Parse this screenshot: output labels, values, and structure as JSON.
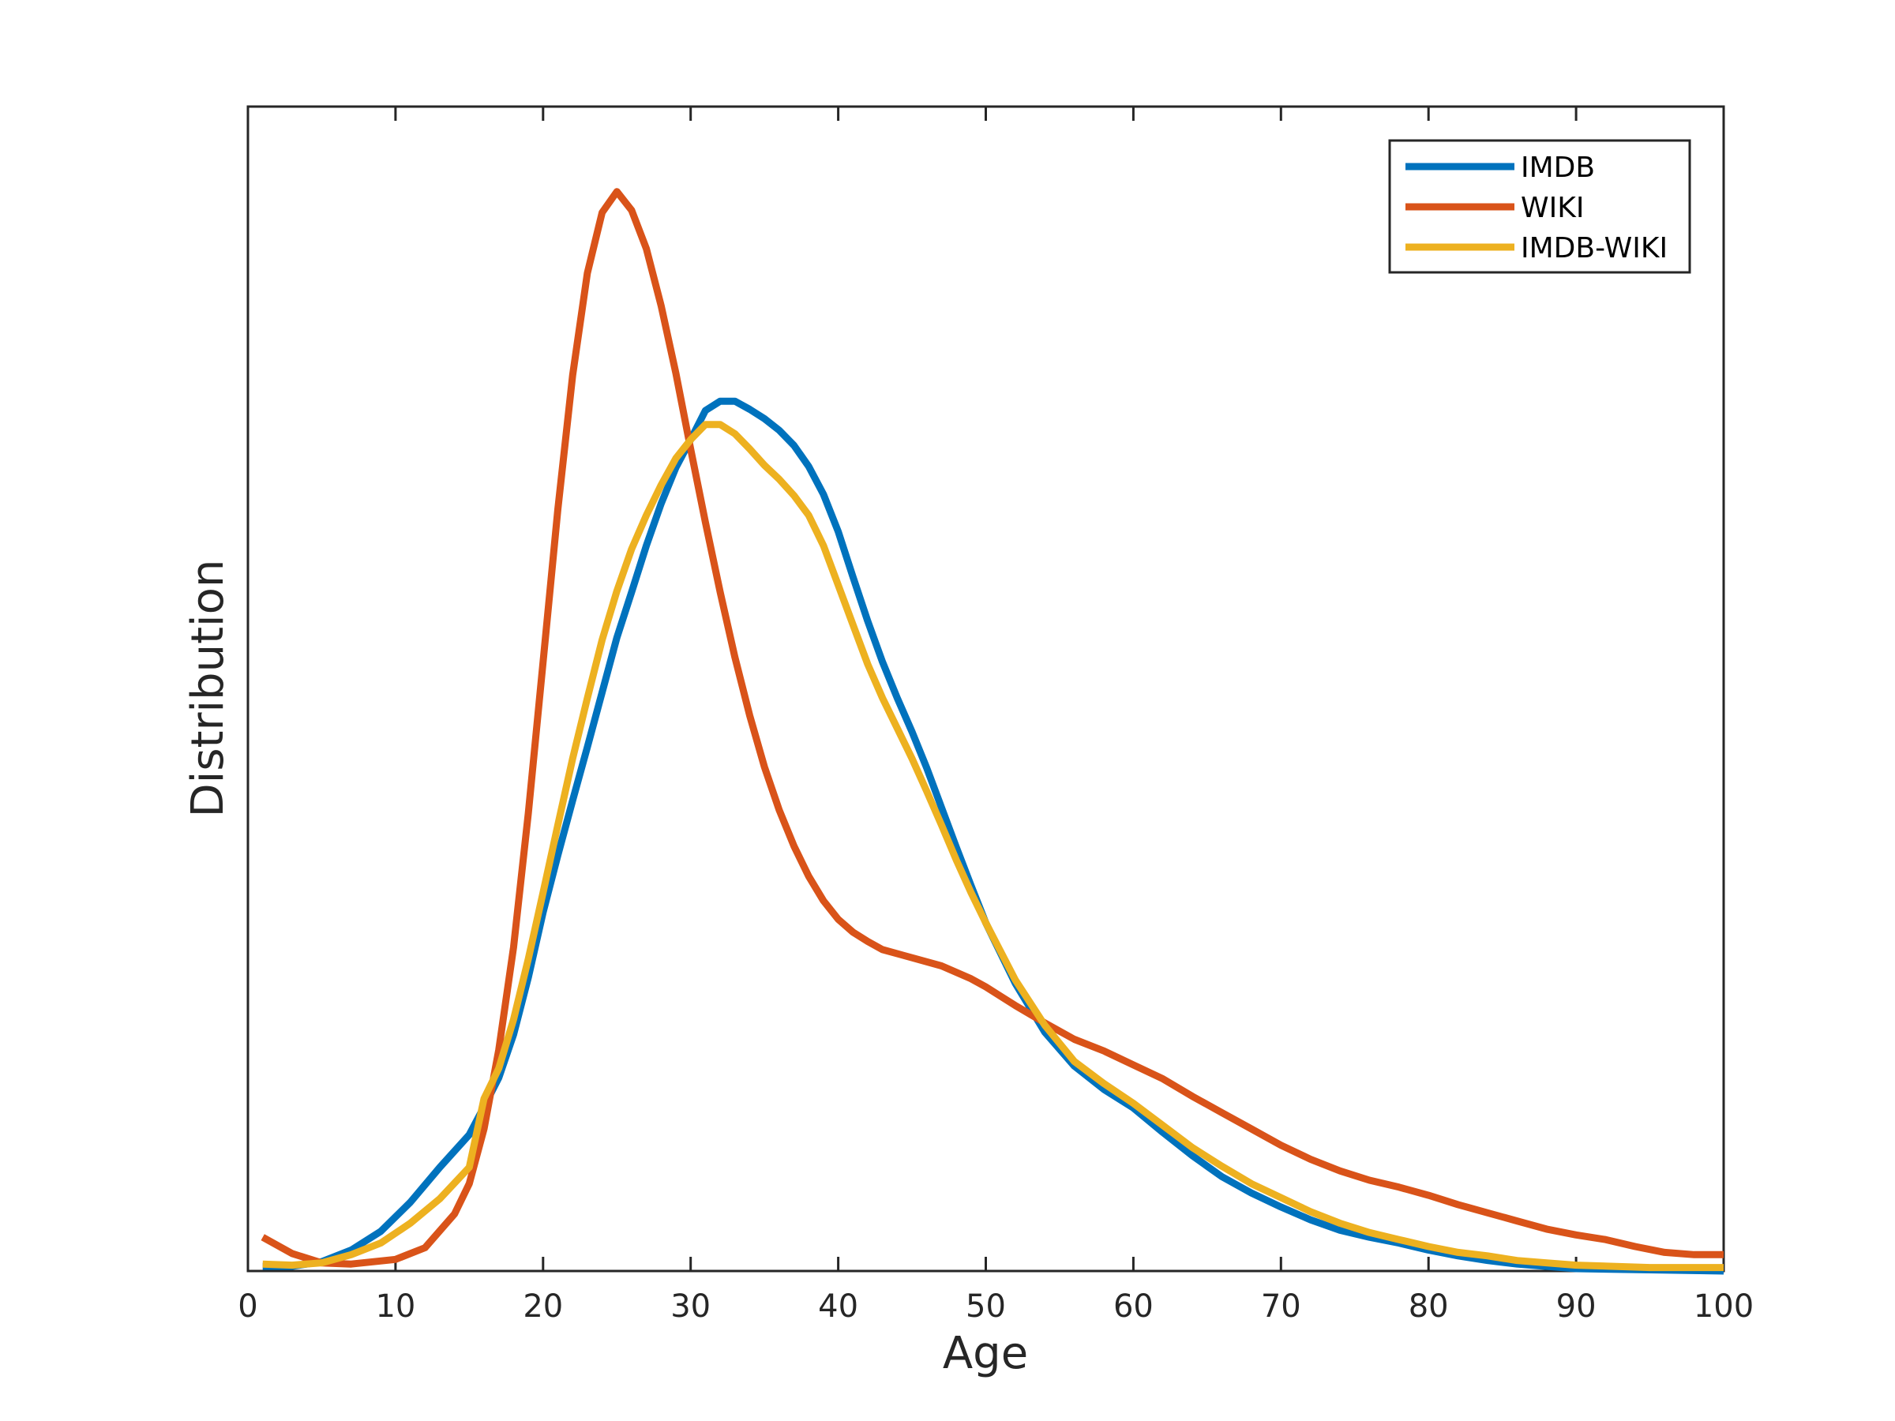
{
  "chart_data": {
    "type": "line",
    "title": "",
    "xlabel": "Age",
    "ylabel": "Distribution",
    "xlim": [
      0,
      100
    ],
    "ylim": [
      0,
      1
    ],
    "xticks": [
      0,
      10,
      20,
      30,
      40,
      50,
      60,
      70,
      80,
      90,
      100
    ],
    "xtick_labels": [
      "0",
      "10",
      "20",
      "30",
      "40",
      "50",
      "60",
      "70",
      "80",
      "90",
      "100"
    ],
    "yticks_shown": false,
    "grid": false,
    "legend_position": "top-right",
    "series": [
      {
        "name": "IMDB",
        "color": "#0072BD",
        "x": [
          1,
          3,
          5,
          7,
          9,
          11,
          13,
          15,
          16,
          17,
          18,
          19,
          20,
          21,
          22,
          23,
          24,
          25,
          26,
          27,
          28,
          29,
          30,
          31,
          32,
          33,
          34,
          35,
          36,
          37,
          38,
          39,
          40,
          41,
          42,
          43,
          44,
          45,
          46,
          47,
          48,
          49,
          50,
          52,
          54,
          56,
          58,
          60,
          62,
          64,
          66,
          68,
          70,
          72,
          74,
          76,
          78,
          80,
          82,
          84,
          86,
          88,
          90,
          95,
          100
        ],
        "y": [
          0.004,
          0.004,
          0.008,
          0.018,
          0.034,
          0.059,
          0.089,
          0.117,
          0.141,
          0.166,
          0.203,
          0.252,
          0.308,
          0.357,
          0.404,
          0.45,
          0.497,
          0.544,
          0.583,
          0.623,
          0.659,
          0.69,
          0.714,
          0.739,
          0.747,
          0.747,
          0.74,
          0.732,
          0.722,
          0.709,
          0.691,
          0.667,
          0.635,
          0.596,
          0.558,
          0.523,
          0.492,
          0.463,
          0.432,
          0.398,
          0.364,
          0.331,
          0.299,
          0.247,
          0.205,
          0.176,
          0.156,
          0.14,
          0.119,
          0.099,
          0.081,
          0.067,
          0.055,
          0.044,
          0.035,
          0.029,
          0.024,
          0.018,
          0.013,
          0.009,
          0.006,
          0.004,
          0.002,
          0.001,
          0.0
        ]
      },
      {
        "name": "WIKI",
        "color": "#D95319",
        "x": [
          1,
          3,
          5,
          7,
          10,
          12,
          14,
          15,
          16,
          17,
          18,
          19,
          20,
          21,
          22,
          23,
          24,
          25,
          26,
          27,
          28,
          29,
          30,
          31,
          32,
          33,
          34,
          35,
          36,
          37,
          38,
          39,
          40,
          41,
          42,
          43,
          45,
          47,
          49,
          50,
          52,
          54,
          56,
          58,
          60,
          62,
          64,
          66,
          68,
          70,
          72,
          74,
          76,
          78,
          80,
          82,
          84,
          86,
          88,
          90,
          92,
          94,
          96,
          98,
          100
        ],
        "y": [
          0.029,
          0.015,
          0.007,
          0.006,
          0.01,
          0.02,
          0.049,
          0.075,
          0.122,
          0.19,
          0.278,
          0.393,
          0.523,
          0.654,
          0.769,
          0.857,
          0.909,
          0.927,
          0.911,
          0.878,
          0.829,
          0.771,
          0.706,
          0.643,
          0.583,
          0.527,
          0.477,
          0.433,
          0.396,
          0.365,
          0.339,
          0.318,
          0.302,
          0.291,
          0.283,
          0.276,
          0.269,
          0.262,
          0.251,
          0.244,
          0.228,
          0.213,
          0.199,
          0.189,
          0.177,
          0.165,
          0.15,
          0.136,
          0.122,
          0.108,
          0.096,
          0.086,
          0.078,
          0.072,
          0.065,
          0.057,
          0.05,
          0.043,
          0.036,
          0.031,
          0.027,
          0.021,
          0.016,
          0.014,
          0.014
        ]
      },
      {
        "name": "IMDB-WIKI",
        "color": "#EDB120",
        "x": [
          1,
          3,
          5,
          7,
          9,
          11,
          13,
          15,
          16,
          17,
          18,
          19,
          20,
          21,
          22,
          23,
          24,
          25,
          26,
          27,
          28,
          29,
          30,
          31,
          32,
          33,
          34,
          35,
          36,
          37,
          38,
          39,
          40,
          41,
          42,
          43,
          44,
          45,
          46,
          47,
          48,
          49,
          50,
          52,
          54,
          56,
          58,
          60,
          62,
          64,
          66,
          68,
          70,
          72,
          74,
          76,
          78,
          80,
          82,
          84,
          86,
          88,
          90,
          95,
          100
        ],
        "y": [
          0.006,
          0.005,
          0.007,
          0.014,
          0.024,
          0.041,
          0.062,
          0.089,
          0.148,
          0.174,
          0.216,
          0.268,
          0.325,
          0.383,
          0.44,
          0.492,
          0.542,
          0.584,
          0.62,
          0.649,
          0.675,
          0.698,
          0.714,
          0.727,
          0.727,
          0.719,
          0.706,
          0.692,
          0.68,
          0.666,
          0.649,
          0.623,
          0.589,
          0.555,
          0.521,
          0.492,
          0.466,
          0.44,
          0.412,
          0.383,
          0.353,
          0.325,
          0.299,
          0.25,
          0.211,
          0.18,
          0.161,
          0.144,
          0.125,
          0.106,
          0.09,
          0.075,
          0.063,
          0.051,
          0.041,
          0.033,
          0.027,
          0.021,
          0.016,
          0.013,
          0.009,
          0.007,
          0.005,
          0.003,
          0.003
        ]
      }
    ]
  }
}
